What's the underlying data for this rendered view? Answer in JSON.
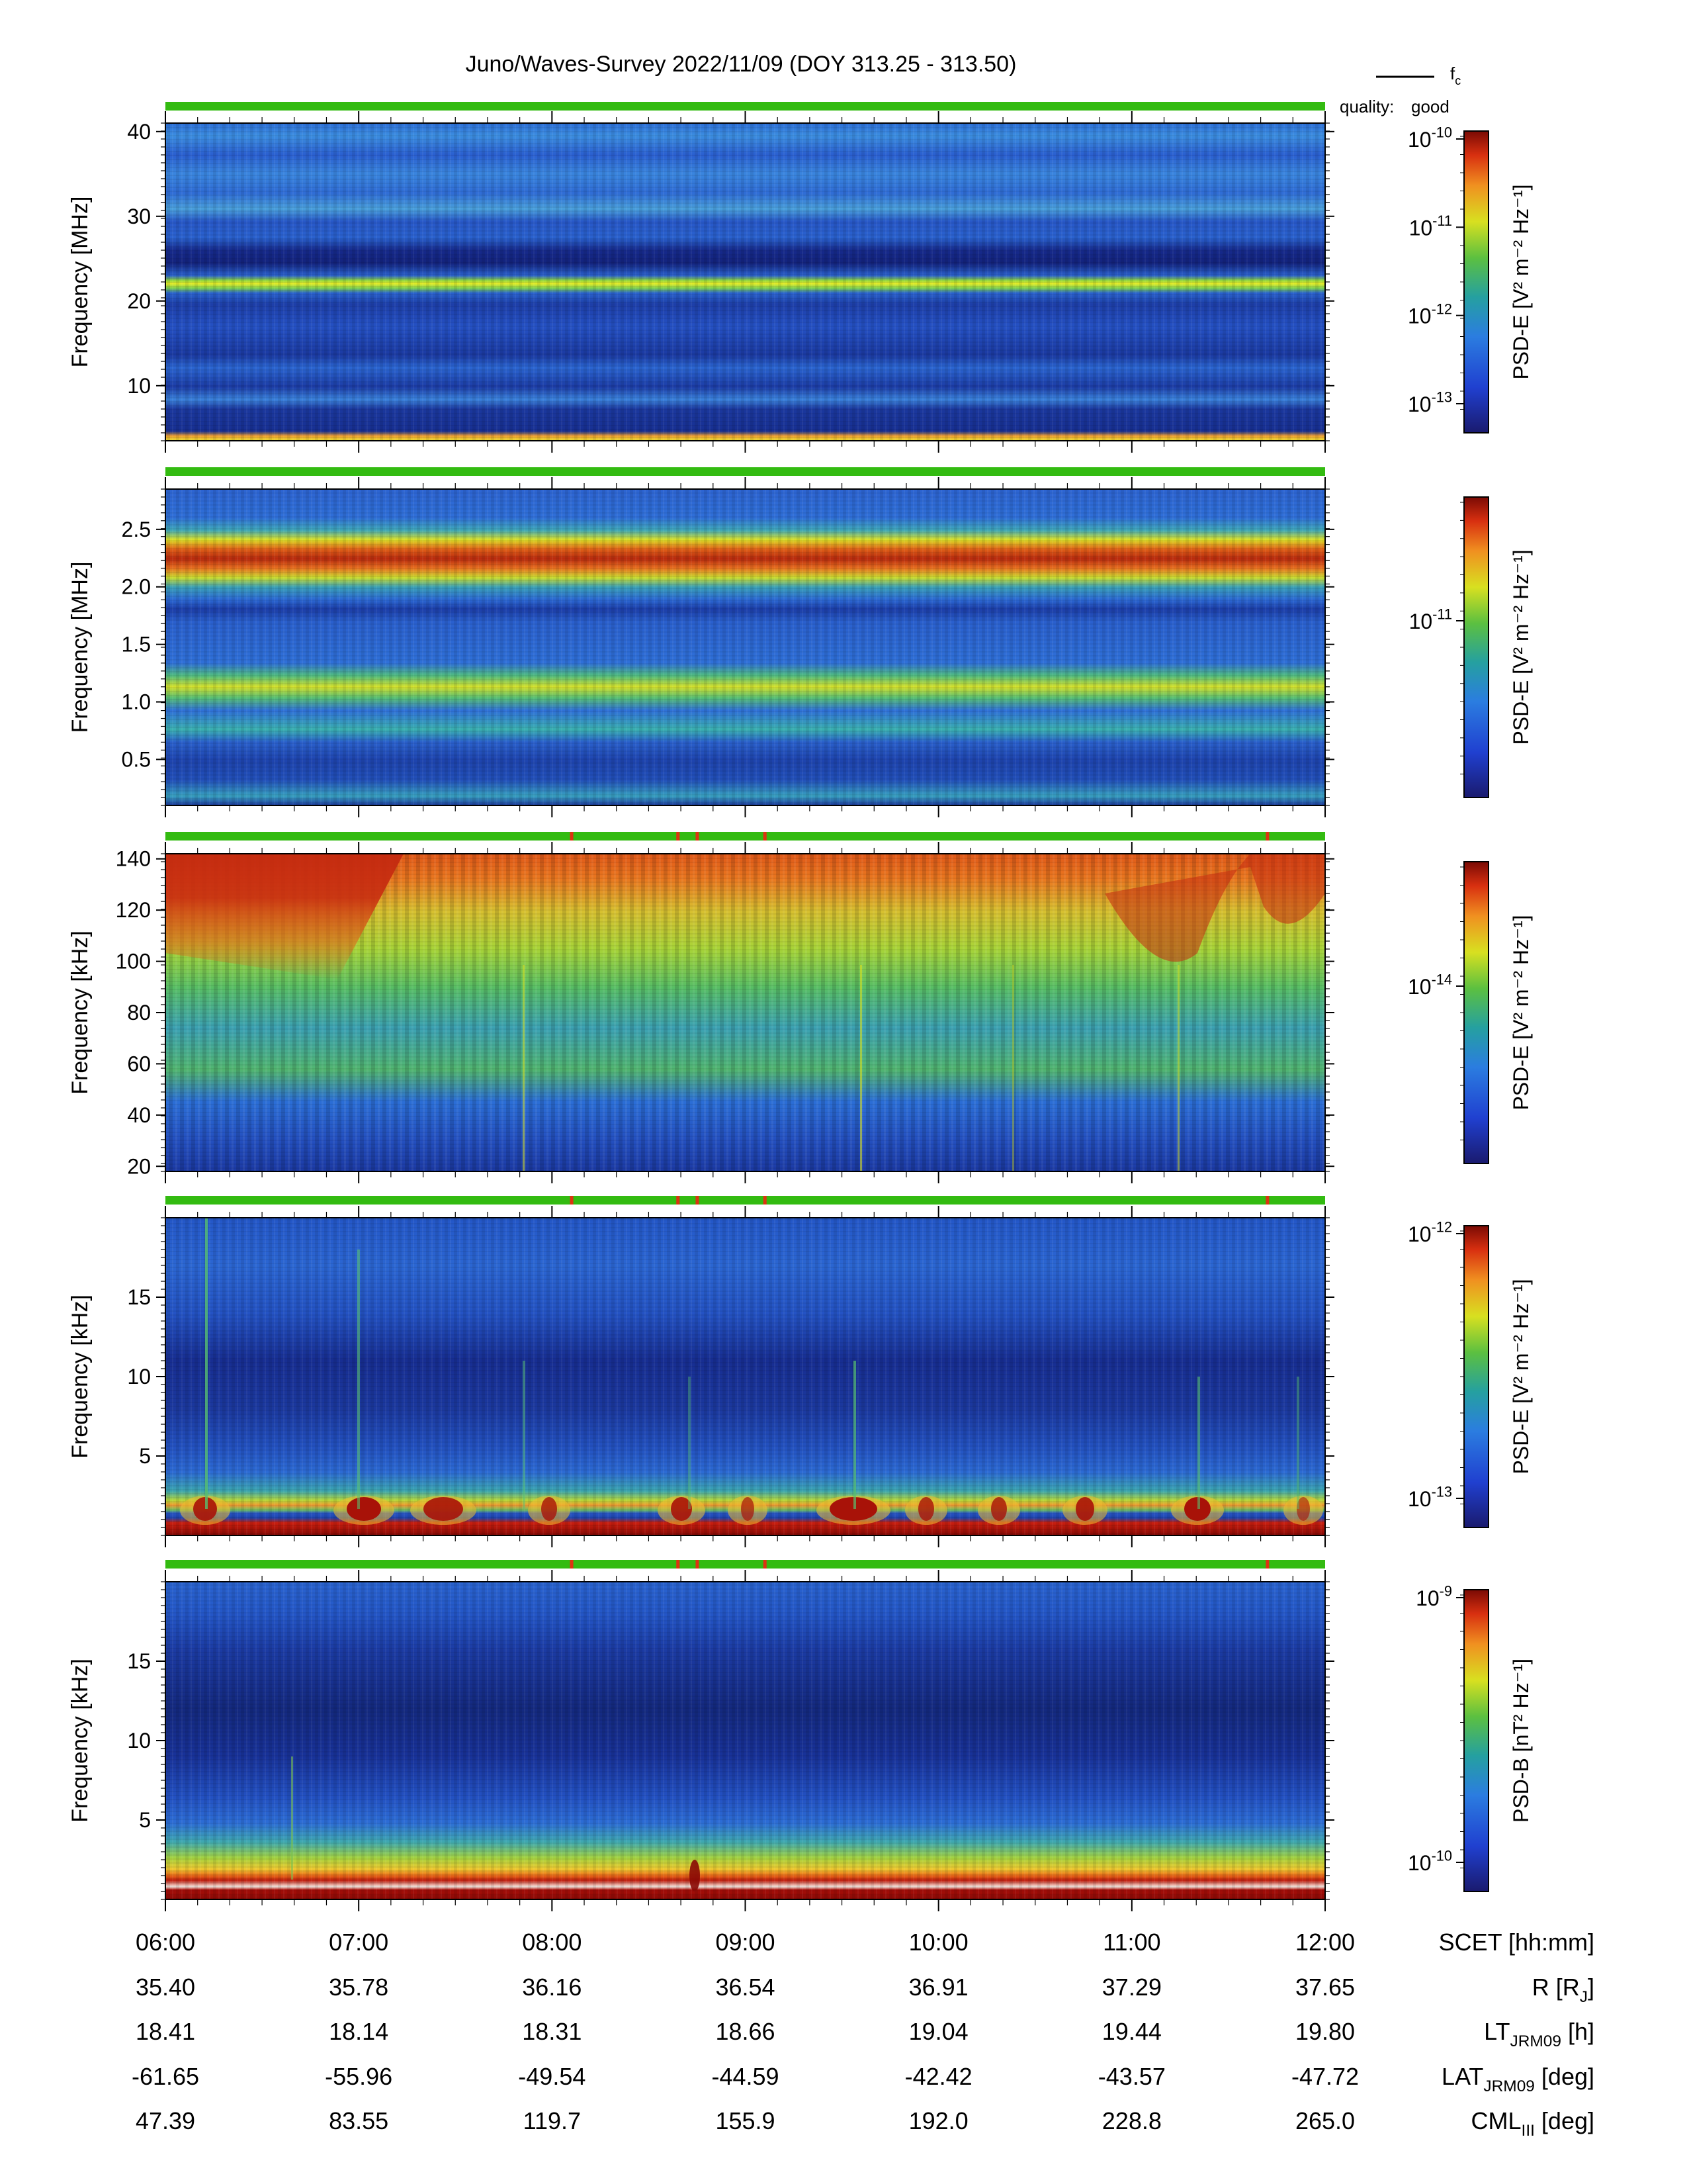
{
  "title": "Juno/Waves-Survey  2022/11/09 (DOY 313.25 - 313.50)",
  "legend": {
    "line_label_base": "f",
    "line_label_sub": "c"
  },
  "quality": {
    "label": "quality:",
    "value": "good",
    "color": "#33bb11"
  },
  "colors": {
    "quality_good": "#33bb11",
    "quality_flag": "#dd3311"
  },
  "time_axis": [
    "06:00",
    "07:00",
    "08:00",
    "09:00",
    "10:00",
    "11:00",
    "12:00"
  ],
  "ephemeris": [
    {
      "label_base": "SCET [hh:mm]",
      "label_sub": "",
      "label_rest": "",
      "values": [
        "06:00",
        "07:00",
        "08:00",
        "09:00",
        "10:00",
        "11:00",
        "12:00"
      ]
    },
    {
      "label_base": "R [R",
      "label_sub": "J",
      "label_rest": "]",
      "values": [
        "35.40",
        "35.78",
        "36.16",
        "36.54",
        "36.91",
        "37.29",
        "37.65"
      ]
    },
    {
      "label_base": "LT",
      "label_sub": "JRM09",
      "label_rest": " [h]",
      "values": [
        "18.41",
        "18.14",
        "18.31",
        "18.66",
        "19.04",
        "19.44",
        "19.80"
      ]
    },
    {
      "label_base": "LAT",
      "label_sub": "JRM09",
      "label_rest": " [deg]",
      "values": [
        "-61.65",
        "-55.96",
        "-49.54",
        "-44.59",
        "-42.42",
        "-43.57",
        "-47.72"
      ]
    },
    {
      "label_base": "CML",
      "label_sub": "III",
      "label_rest": " [deg]",
      "values": [
        "47.39",
        "83.55",
        "119.7",
        "155.9",
        "192.0",
        "228.8",
        "265.0"
      ]
    }
  ],
  "chart_data": [
    {
      "type": "heatmap",
      "ylabel": "Frequency [MHz]",
      "yticks": [
        "10",
        "20",
        "30",
        "40"
      ],
      "ylim": [
        3.5,
        41
      ],
      "colorbar_label": "PSD-E [V² m⁻² Hz⁻¹]",
      "colorbar_ticks": [
        "10-10",
        "10-11",
        "10-12",
        "10-13"
      ],
      "bands": [
        {
          "freq": 22,
          "level": "yellow-green"
        },
        {
          "freq": 24.5,
          "level": "dark-blue"
        },
        {
          "freq": 29,
          "level": "blue"
        },
        {
          "freq": 39.5,
          "level": "light-blue"
        }
      ],
      "quality_flags": []
    },
    {
      "type": "heatmap",
      "ylabel": "Frequency [MHz]",
      "yticks": [
        "0.5",
        "1.0",
        "1.5",
        "2.0",
        "2.5"
      ],
      "ylim": [
        0.1,
        2.85
      ],
      "colorbar_label": "PSD-E [V² m⁻² Hz⁻¹]",
      "colorbar_ticks": [
        "10-11"
      ],
      "bands": [
        {
          "freq": 2.25,
          "level": "red"
        },
        {
          "freq": 1.1,
          "level": "yellow-green"
        },
        {
          "freq": 0.75,
          "level": "cyan"
        }
      ],
      "quality_flags": []
    },
    {
      "type": "heatmap",
      "ylabel": "Frequency [kHz]",
      "yticks": [
        "20",
        "40",
        "60",
        "80",
        "100",
        "120",
        "140"
      ],
      "ylim": [
        18,
        142
      ],
      "colorbar_label": "PSD-E [V² m⁻² Hz⁻¹]",
      "colorbar_ticks": [
        "10-14"
      ],
      "bands": [
        {
          "freq": 120,
          "level": "orange"
        },
        {
          "freq": 60,
          "level": "green"
        }
      ],
      "quality_flags": [
        "08:06",
        "08:39",
        "08:45",
        "09:06",
        "11:42"
      ]
    },
    {
      "type": "heatmap",
      "ylabel": "Frequency [kHz]",
      "yticks": [
        "5",
        "10",
        "15"
      ],
      "ylim": [
        0,
        20
      ],
      "colorbar_label": "PSD-E [V² m⁻² Hz⁻¹]",
      "colorbar_ticks": [
        "10-12",
        "10-13"
      ],
      "bands": [
        {
          "freq": 1.5,
          "level": "red"
        },
        {
          "freq": 8,
          "level": "dark-blue"
        }
      ],
      "quality_flags": [
        "08:06",
        "08:39",
        "08:45",
        "09:06",
        "11:42"
      ]
    },
    {
      "type": "heatmap",
      "ylabel": "Frequency [kHz]",
      "yticks": [
        "5",
        "10",
        "15"
      ],
      "ylim": [
        0,
        20
      ],
      "colorbar_label": "PSD-B [nT² Hz⁻¹]",
      "colorbar_ticks": [
        "10-9",
        "10-10"
      ],
      "bands": [
        {
          "freq": 0.8,
          "level": "dark-red"
        },
        {
          "freq": 2,
          "level": "yellow"
        },
        {
          "freq": 10,
          "level": "dark-blue"
        }
      ],
      "quality_flags": [
        "08:06",
        "08:39",
        "08:45",
        "09:06",
        "11:42"
      ]
    }
  ]
}
